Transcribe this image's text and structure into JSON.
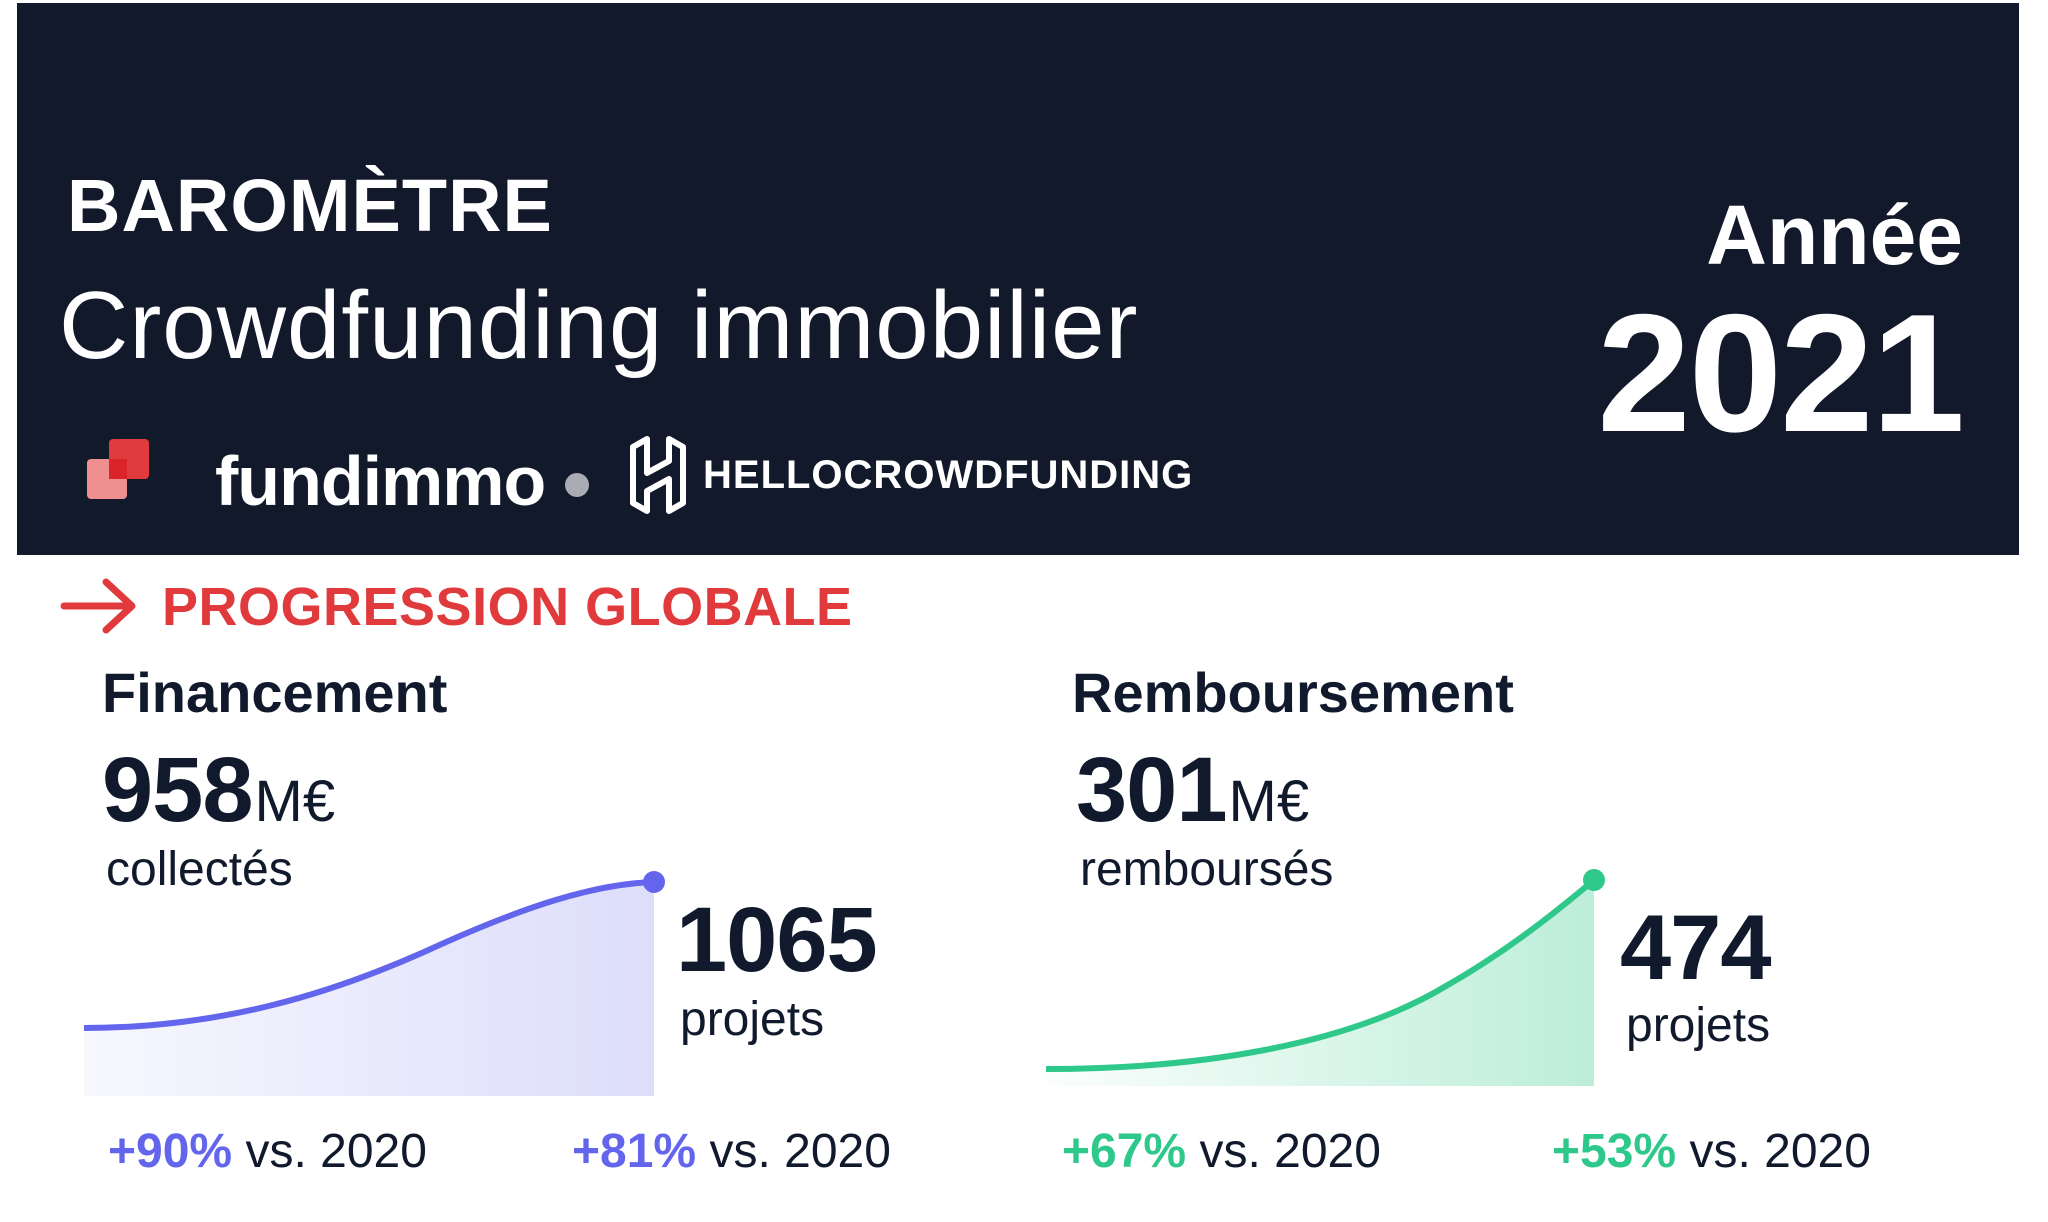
{
  "header": {
    "kicker": "BAROMÈTRE",
    "headline": "Crowdfunding immobilier",
    "year_label": "Année",
    "year_value": "2021",
    "logos": [
      {
        "name": "fundimmo",
        "icon": "fundimmo-logo-icon"
      },
      {
        "name": "HELLOCROWDFUNDING",
        "icon": "hellocrowdfunding-logo-icon"
      }
    ]
  },
  "section": {
    "title": "PROGRESSION GLOBALE",
    "icon": "arrow-right-icon"
  },
  "financement": {
    "title": "Financement",
    "amount": "958",
    "unit": "M€",
    "caption": "collectés",
    "projects_value": "1065",
    "projects_label": "projets",
    "amount_change": "+90%",
    "projects_change": "+81%",
    "comparison": "vs. 2020",
    "trend_level": 1.0
  },
  "remboursement": {
    "title": "Remboursement",
    "amount": "301",
    "unit": "M€",
    "caption": "remboursés",
    "projects_value": "474",
    "projects_label": "projets",
    "amount_change": "+67%",
    "projects_change": "+53%",
    "comparison": "vs. 2020",
    "trend_level": 1.0
  },
  "colors": {
    "banner": "#12192b",
    "accent_red": "#e03a3c",
    "financement": "#6366ec",
    "remboursement": "#2ec98a",
    "text": "#111a2d"
  }
}
